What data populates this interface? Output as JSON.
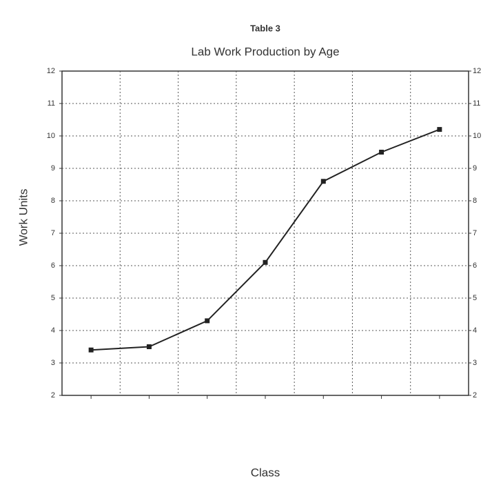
{
  "chart_data": {
    "type": "line",
    "title": "Table 3",
    "subtitle": "Lab Work Production by Age",
    "y_label": "Work Units",
    "x_label": "Class",
    "categories": [
      null,
      null,
      null,
      null,
      null,
      null,
      null
    ],
    "values": [
      3.4,
      3.5,
      4.3,
      6.1,
      8.6,
      9.5,
      10.2
    ],
    "color": "#222222",
    "ylim": [
      2,
      12
    ],
    "yticks": [
      2,
      3,
      4,
      5,
      6,
      7,
      8,
      9,
      10,
      11,
      12
    ],
    "grid": true
  }
}
